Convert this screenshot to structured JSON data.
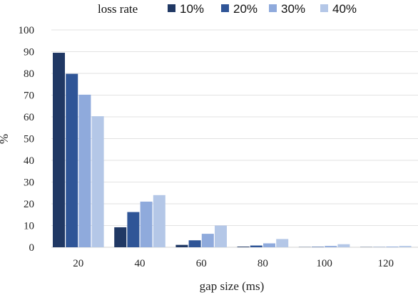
{
  "chart_data": {
    "type": "bar",
    "legend_title": "loss rate",
    "legend_position": "top",
    "categories": [
      "20",
      "40",
      "60",
      "80",
      "100",
      "120"
    ],
    "series": [
      {
        "name": "10%",
        "color": "#203864",
        "values": [
          89.5,
          9.2,
          1.1,
          0.3,
          0.1,
          0.1
        ]
      },
      {
        "name": "20%",
        "color": "#2f5597",
        "values": [
          79.8,
          16.2,
          3.2,
          0.8,
          0.2,
          0.1
        ]
      },
      {
        "name": "30%",
        "color": "#8faadc",
        "values": [
          70.2,
          21.0,
          6.2,
          1.8,
          0.6,
          0.3
        ]
      },
      {
        "name": "40%",
        "color": "#b4c7e7",
        "values": [
          60.3,
          24.0,
          10.0,
          3.8,
          1.4,
          0.6
        ]
      }
    ],
    "y_ticks": [
      "0",
      "10",
      "20",
      "30",
      "40",
      "50",
      "60",
      "70",
      "80",
      "90",
      "100"
    ],
    "ylim": [
      0,
      100
    ],
    "xlabel": "gap size (ms)",
    "ylabel": "%",
    "grid": true
  }
}
